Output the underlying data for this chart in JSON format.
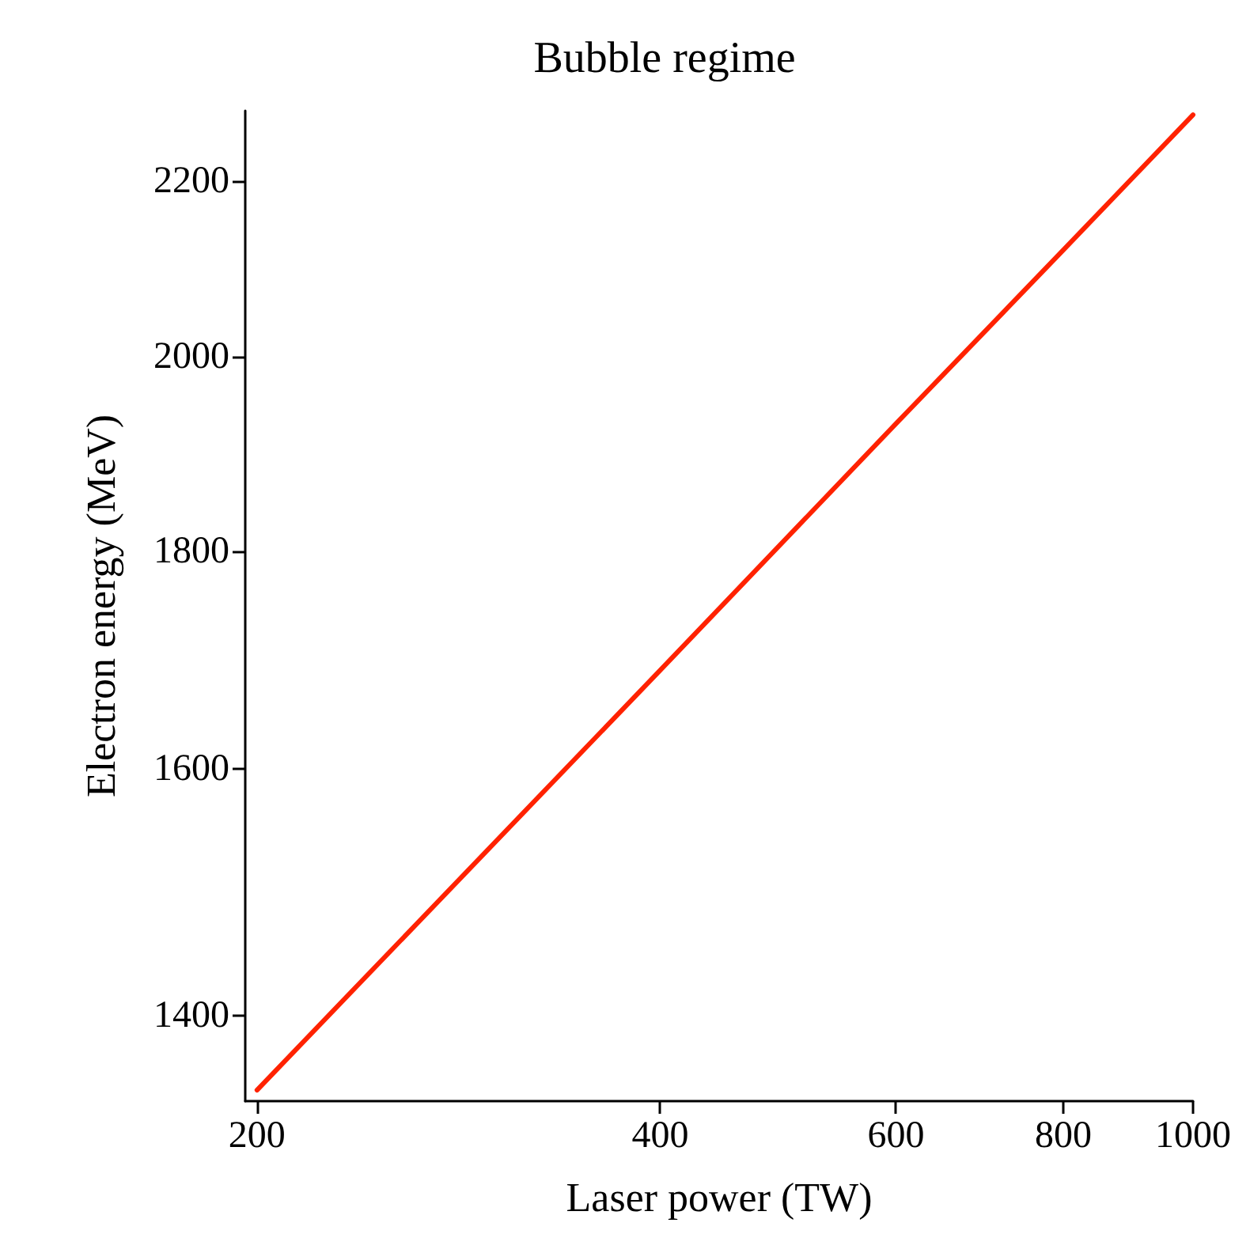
{
  "chart_data": {
    "type": "line",
    "title": "Bubble regime",
    "xlabel": "Laser power (TW)",
    "ylabel": "Electron energy (MeV)",
    "x": [
      200,
      400,
      600,
      800,
      1000
    ],
    "series": [
      {
        "color": "#ff2200",
        "values": [
          1345,
          1688,
          1929,
          2119,
          2280
        ]
      }
    ],
    "xlim": [
      196,
      1000
    ],
    "ylim": [
      1337,
      2285
    ],
    "xticks": [
      200,
      400,
      600,
      800,
      1000
    ],
    "yticks": [
      1400,
      1600,
      1800,
      2000,
      2200
    ],
    "log": "xy",
    "grid": false,
    "marker": "none",
    "line_style": "solid"
  }
}
